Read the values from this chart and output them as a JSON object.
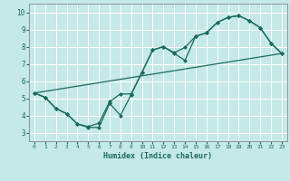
{
  "xlabel": "Humidex (Indice chaleur)",
  "bg_color": "#c5e8e8",
  "grid_color": "#ffffff",
  "line_color": "#1a6b5a",
  "xlim": [
    -0.5,
    23.5
  ],
  "ylim": [
    2.5,
    10.5
  ],
  "xticks": [
    0,
    1,
    2,
    3,
    4,
    5,
    6,
    7,
    8,
    9,
    10,
    11,
    12,
    13,
    14,
    15,
    16,
    17,
    18,
    19,
    20,
    21,
    22,
    23
  ],
  "yticks": [
    3,
    4,
    5,
    6,
    7,
    8,
    9,
    10
  ],
  "line1_x": [
    0,
    1,
    2,
    3,
    4,
    5,
    6,
    7,
    8,
    9,
    10,
    11,
    12,
    13,
    14,
    15,
    16,
    17,
    18,
    19,
    20,
    21,
    22,
    23
  ],
  "line1_y": [
    5.3,
    5.05,
    4.4,
    4.1,
    3.5,
    3.3,
    3.3,
    4.7,
    4.0,
    5.2,
    6.5,
    7.8,
    8.0,
    7.6,
    7.2,
    8.6,
    8.8,
    9.4,
    9.7,
    9.8,
    9.5,
    9.1,
    8.2,
    7.6
  ],
  "line2_x": [
    0,
    1,
    2,
    3,
    4,
    5,
    6,
    7,
    8,
    9,
    10,
    11,
    12,
    13,
    14,
    15,
    16,
    17,
    18,
    19,
    20,
    21,
    22,
    23
  ],
  "line2_y": [
    5.3,
    5.05,
    4.4,
    4.1,
    3.5,
    3.35,
    3.55,
    4.8,
    5.25,
    5.25,
    6.5,
    7.8,
    8.0,
    7.65,
    7.95,
    8.6,
    8.8,
    9.4,
    9.7,
    9.8,
    9.5,
    9.1,
    8.2,
    7.6
  ],
  "line3_x": [
    0,
    23
  ],
  "line3_y": [
    5.3,
    7.6
  ]
}
